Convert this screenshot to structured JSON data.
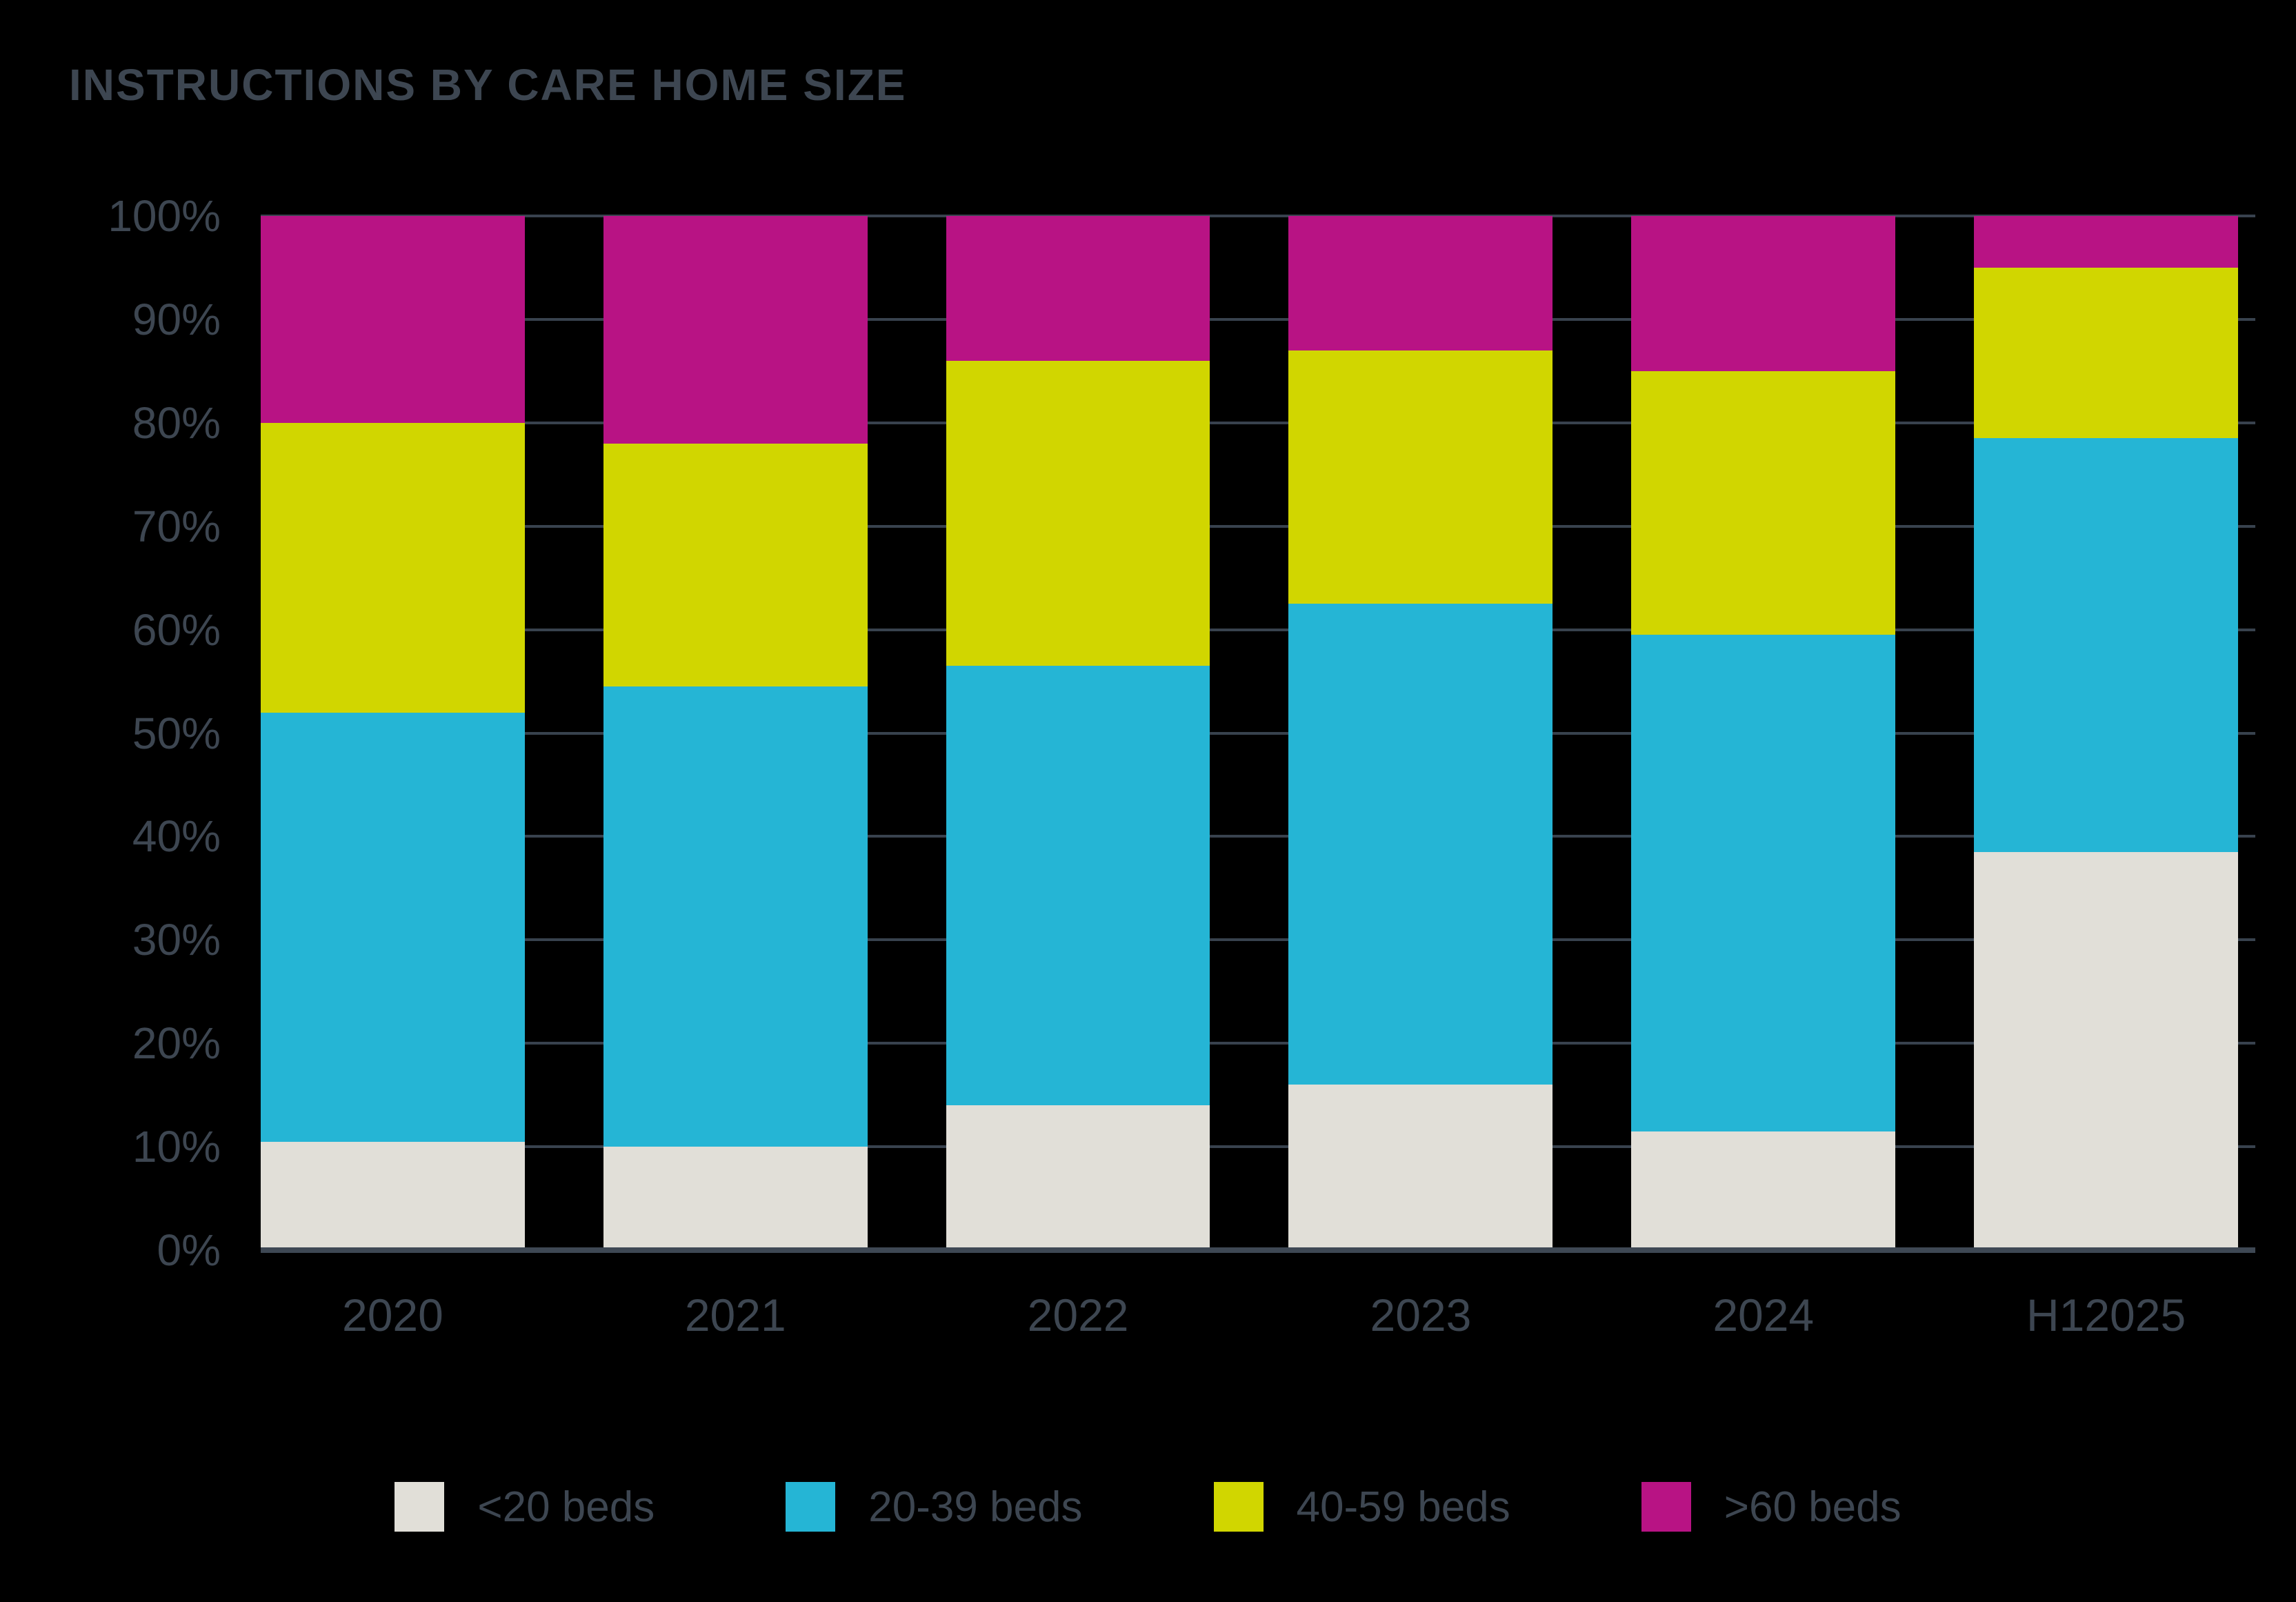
{
  "title": "INSTRUCTIONS BY CARE HOME SIZE",
  "colors": {
    "background": "#000000",
    "title_text": "#3d4651",
    "axis_text": "#3d4651",
    "gridline": "#38424e",
    "axis_line": "#3e4854"
  },
  "chart_data": {
    "type": "bar",
    "variant": "stacked-percent",
    "title": "INSTRUCTIONS BY CARE HOME SIZE",
    "categories": [
      "2020",
      "2021",
      "2022",
      "2023",
      "2024",
      "H12025"
    ],
    "series": [
      {
        "name": "<20 beds",
        "color": "#e1dfd8",
        "values": [
          10.5,
          10,
          14,
          16,
          11.5,
          38.5
        ]
      },
      {
        "name": "20-39 beds",
        "color": "#25b5d5",
        "values": [
          41.5,
          44.5,
          42.5,
          46.5,
          48,
          40
        ]
      },
      {
        "name": "40-59 beds",
        "color": "#d1d600",
        "values": [
          28,
          23.5,
          29.5,
          24.5,
          25.5,
          16.5
        ]
      },
      {
        "name": ">60 beds",
        "color": "#b81384",
        "values": [
          20,
          22,
          14,
          13,
          15,
          5
        ]
      }
    ],
    "xlabel": "",
    "ylabel": "",
    "ylim": [
      0,
      100
    ],
    "yticks": [
      0,
      10,
      20,
      30,
      40,
      50,
      60,
      70,
      80,
      90,
      100
    ],
    "ytick_suffix": "%",
    "grid": "horizontal",
    "legend_position": "bottom"
  }
}
